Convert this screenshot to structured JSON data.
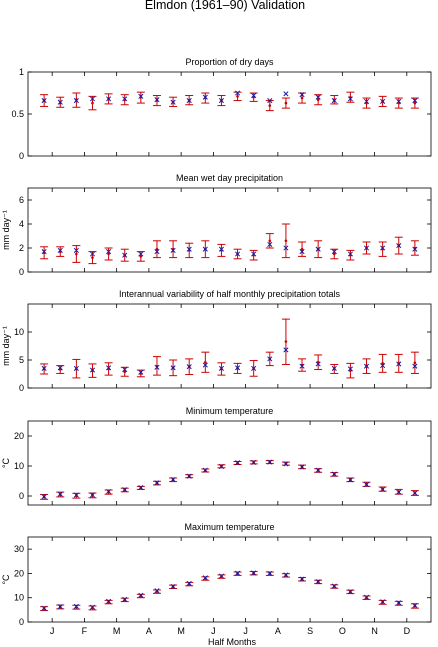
{
  "figure": {
    "title": "Elmdon (1961–90) Validation",
    "xlabel": "Half Months",
    "month_labels": [
      "J",
      "F",
      "M",
      "A",
      "M",
      "J",
      "J",
      "A",
      "S",
      "O",
      "N",
      "D"
    ]
  },
  "style": {
    "observed_color": "#cc0000",
    "model_color": "#1a1aa6"
  },
  "chart_data": [
    {
      "type": "errorbar",
      "title": "Proportion of dry days",
      "ylabel": "",
      "ylim": [
        0,
        1
      ],
      "yticks": [
        0,
        0.5,
        1
      ],
      "x": [
        1,
        2,
        3,
        4,
        5,
        6,
        7,
        8,
        9,
        10,
        11,
        12,
        13,
        14,
        15,
        16,
        17,
        18,
        19,
        20,
        21,
        22,
        23,
        24
      ],
      "series": [
        {
          "kind": "observed",
          "values": [
            0.66,
            0.63,
            0.67,
            0.63,
            0.68,
            0.67,
            0.7,
            0.66,
            0.64,
            0.66,
            0.69,
            0.66,
            0.71,
            0.7,
            0.6,
            0.63,
            0.69,
            0.67,
            0.67,
            0.7,
            0.63,
            0.65,
            0.63,
            0.63
          ],
          "lower": [
            0.59,
            0.58,
            0.58,
            0.55,
            0.62,
            0.61,
            0.63,
            0.6,
            0.59,
            0.61,
            0.63,
            0.6,
            0.66,
            0.65,
            0.54,
            0.57,
            0.63,
            0.61,
            0.62,
            0.64,
            0.57,
            0.59,
            0.57,
            0.57
          ],
          "upper": [
            0.73,
            0.7,
            0.75,
            0.71,
            0.74,
            0.73,
            0.76,
            0.72,
            0.7,
            0.72,
            0.75,
            0.72,
            0.76,
            0.75,
            0.66,
            0.69,
            0.75,
            0.73,
            0.72,
            0.76,
            0.69,
            0.71,
            0.69,
            0.69
          ]
        },
        {
          "kind": "model",
          "values": [
            0.66,
            0.64,
            0.66,
            0.68,
            0.68,
            0.68,
            0.71,
            0.67,
            0.64,
            0.66,
            0.7,
            0.66,
            0.75,
            0.72,
            0.66,
            0.74,
            0.73,
            0.7,
            0.66,
            0.68,
            0.65,
            0.65,
            0.65,
            0.66
          ]
        }
      ]
    },
    {
      "type": "errorbar",
      "title": "Mean wet day precipitation",
      "ylabel": "mm day⁻¹",
      "ylim": [
        0,
        7
      ],
      "yticks": [
        0,
        2,
        4,
        6
      ],
      "x": [
        1,
        2,
        3,
        4,
        5,
        6,
        7,
        8,
        9,
        10,
        11,
        12,
        13,
        14,
        15,
        16,
        17,
        18,
        19,
        20,
        21,
        22,
        23,
        24
      ],
      "series": [
        {
          "kind": "observed",
          "values": [
            1.6,
            1.7,
            1.5,
            1.2,
            1.5,
            1.4,
            1.3,
            1.9,
            1.9,
            1.8,
            1.9,
            1.8,
            1.5,
            1.4,
            2.6,
            2.6,
            1.9,
            1.9,
            1.5,
            1.4,
            2.0,
            1.9,
            2.2,
            2.0
          ],
          "lower": [
            1.1,
            1.3,
            0.8,
            0.7,
            1.0,
            0.9,
            0.9,
            1.2,
            1.2,
            1.2,
            1.2,
            1.3,
            1.1,
            1.0,
            2.0,
            1.2,
            1.3,
            1.2,
            1.1,
            1.0,
            1.5,
            1.3,
            1.5,
            1.4
          ],
          "upper": [
            2.1,
            2.1,
            2.2,
            1.7,
            2.0,
            1.9,
            1.7,
            2.6,
            2.6,
            2.4,
            2.6,
            2.3,
            1.9,
            1.8,
            3.2,
            4.0,
            2.5,
            2.6,
            1.9,
            1.8,
            2.5,
            2.5,
            2.9,
            2.6
          ]
        },
        {
          "kind": "model",
          "values": [
            1.7,
            1.8,
            1.8,
            1.5,
            1.7,
            1.4,
            1.5,
            1.7,
            1.8,
            1.9,
            1.9,
            1.9,
            1.5,
            1.5,
            2.3,
            2.0,
            1.7,
            1.9,
            1.7,
            1.5,
            2.0,
            2.0,
            2.2,
            1.9
          ]
        }
      ]
    },
    {
      "type": "errorbar",
      "title": "Interannual variability of half monthly precipitation totals",
      "ylabel": "mm day⁻¹",
      "ylim": [
        0,
        15
      ],
      "yticks": [
        0,
        5,
        10
      ],
      "x": [
        1,
        2,
        3,
        4,
        5,
        6,
        7,
        8,
        9,
        10,
        11,
        12,
        13,
        14,
        15,
        16,
        17,
        18,
        19,
        20,
        21,
        22,
        23,
        24
      ],
      "series": [
        {
          "kind": "observed",
          "values": [
            3.4,
            3.3,
            3.4,
            3.1,
            3.4,
            2.9,
            2.6,
            3.9,
            3.6,
            3.8,
            4.6,
            3.4,
            3.5,
            3.5,
            5.2,
            8.3,
            4.1,
            4.6,
            3.4,
            3.1,
            3.9,
            4.4,
            4.4,
            4.5
          ],
          "lower": [
            2.5,
            2.6,
            1.8,
            1.9,
            2.3,
            2.1,
            2.0,
            2.3,
            2.2,
            2.4,
            2.8,
            2.3,
            2.6,
            2.1,
            4.0,
            4.2,
            3.0,
            3.3,
            2.6,
            1.8,
            2.6,
            2.8,
            2.8,
            2.6
          ],
          "upper": [
            4.3,
            4.0,
            5.1,
            4.3,
            4.5,
            3.7,
            3.2,
            5.6,
            5.0,
            5.2,
            6.4,
            4.5,
            4.4,
            4.9,
            6.4,
            12.3,
            5.2,
            5.9,
            4.2,
            4.4,
            5.2,
            6.0,
            6.0,
            6.4
          ]
        },
        {
          "kind": "model",
          "values": [
            3.5,
            3.6,
            3.5,
            3.2,
            3.6,
            3.3,
            2.8,
            3.7,
            3.6,
            3.8,
            4.1,
            3.5,
            3.6,
            3.5,
            5.2,
            6.8,
            3.9,
            4.3,
            3.5,
            3.4,
            3.9,
            4.0,
            4.3,
            3.9
          ]
        }
      ]
    },
    {
      "type": "errorbar",
      "title": "Minimum temperature",
      "ylabel": "°C",
      "ylim": [
        -3,
        25
      ],
      "yticks": [
        0,
        10,
        20
      ],
      "x": [
        1,
        2,
        3,
        4,
        5,
        6,
        7,
        8,
        9,
        10,
        11,
        12,
        13,
        14,
        15,
        16,
        17,
        18,
        19,
        20,
        21,
        22,
        23,
        24
      ],
      "series": [
        {
          "kind": "observed",
          "values": [
            -0.3,
            0.5,
            0.1,
            0.2,
            1.3,
            2.0,
            2.7,
            4.3,
            5.4,
            6.6,
            8.5,
            9.9,
            11.0,
            11.2,
            11.3,
            10.8,
            9.7,
            8.5,
            7.2,
            5.4,
            3.9,
            2.3,
            1.4,
            1.0
          ],
          "lower": [
            -1.1,
            -0.3,
            -0.7,
            -0.6,
            0.6,
            1.4,
            2.2,
            3.7,
            4.8,
            6.1,
            8.0,
            9.4,
            10.5,
            10.7,
            10.8,
            10.3,
            9.1,
            7.9,
            6.6,
            4.8,
            3.2,
            1.6,
            0.6,
            0.2
          ],
          "upper": [
            0.5,
            1.3,
            0.9,
            1.0,
            2.0,
            2.6,
            3.2,
            4.9,
            6.0,
            7.1,
            9.0,
            10.4,
            11.5,
            11.7,
            11.8,
            11.3,
            10.3,
            9.1,
            7.8,
            6.0,
            4.6,
            3.0,
            2.2,
            1.8
          ]
        },
        {
          "kind": "model",
          "values": [
            -0.2,
            0.6,
            0.3,
            0.3,
            1.5,
            2.1,
            2.8,
            4.4,
            5.5,
            6.6,
            8.6,
            9.8,
            11.1,
            11.2,
            11.3,
            10.7,
            9.7,
            8.6,
            7.3,
            5.4,
            3.8,
            2.2,
            1.3,
            1.0
          ]
        }
      ]
    },
    {
      "type": "errorbar",
      "title": "Maximum temperature",
      "ylabel": "°C",
      "ylim": [
        0,
        35
      ],
      "yticks": [
        0,
        10,
        20,
        30
      ],
      "x": [
        1,
        2,
        3,
        4,
        5,
        6,
        7,
        8,
        9,
        10,
        11,
        12,
        13,
        14,
        15,
        16,
        17,
        18,
        19,
        20,
        21,
        22,
        23,
        24
      ],
      "series": [
        {
          "kind": "observed",
          "values": [
            5.5,
            6.2,
            6.1,
            5.8,
            8.2,
            9.1,
            10.7,
            12.5,
            14.5,
            15.6,
            17.9,
            18.7,
            19.9,
            20.1,
            19.9,
            19.2,
            17.6,
            16.5,
            14.6,
            12.4,
            10.0,
            8.1,
            7.7,
            6.6
          ],
          "lower": [
            4.7,
            5.4,
            5.3,
            5.0,
            7.5,
            8.4,
            10.0,
            11.8,
            13.8,
            14.9,
            17.2,
            18.0,
            19.2,
            19.4,
            19.2,
            18.5,
            16.9,
            15.8,
            13.9,
            11.7,
            9.3,
            7.3,
            6.9,
            5.7
          ],
          "upper": [
            6.3,
            7.0,
            6.9,
            6.6,
            8.9,
            9.8,
            11.4,
            13.2,
            15.2,
            16.3,
            18.6,
            19.4,
            20.6,
            20.8,
            20.6,
            19.9,
            18.3,
            17.2,
            15.3,
            13.1,
            10.7,
            8.9,
            8.5,
            7.5
          ]
        },
        {
          "kind": "model",
          "values": [
            5.7,
            6.3,
            6.4,
            6.1,
            8.5,
            9.3,
            11.0,
            12.9,
            14.6,
            15.9,
            18.2,
            18.9,
            20.1,
            20.2,
            20.0,
            19.4,
            17.7,
            16.6,
            14.8,
            12.5,
            10.2,
            8.3,
            7.9,
            6.8
          ]
        }
      ]
    }
  ]
}
